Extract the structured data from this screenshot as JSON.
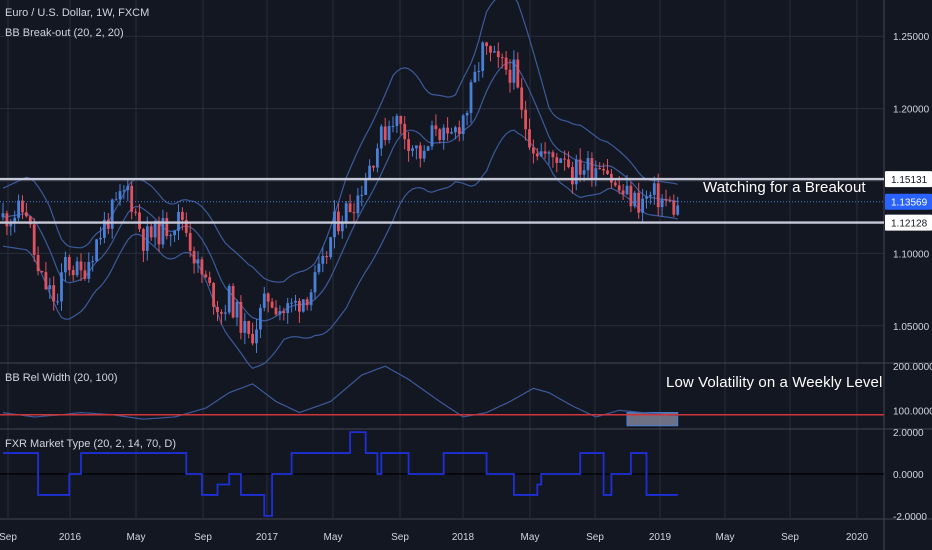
{
  "symbol_title": "Euro / U.S. Dollar, 1W, FXCM",
  "indicator_bb": "BB Break-out (20, 2, 20)",
  "indicator_width": "BB Rel Width (20, 100)",
  "indicator_market": "FXR Market Type (20, 2, 14, 70, D)",
  "annotations": {
    "breakout": "Watching for a Breakout",
    "volatility": "Low Volatility on a Weekly Level"
  },
  "colors": {
    "background": "#131722",
    "grid": "#2a2e39",
    "up_candle": "#4a7fd6",
    "down_candle": "#e0525e",
    "band": "#3c5a9a",
    "level_line": "#c7c9d9",
    "width_line": "#d13438",
    "market_line": "#1e2fd8"
  },
  "chart_data": [
    {
      "type": "candlestick",
      "title": "Euro / U.S. Dollar, 1W, FXCM",
      "x_ticks": [
        "Sep",
        "2016",
        "May",
        "Sep",
        "2017",
        "May",
        "Sep",
        "2018",
        "May",
        "Sep",
        "2019",
        "May",
        "Sep",
        "2020"
      ],
      "y_ticks": [
        "1.25000",
        "1.20000",
        "1.15000",
        "1.10000",
        "1.05000"
      ],
      "ylim": [
        1.025,
        1.275
      ],
      "horizontal_levels": [
        1.15131,
        1.12128
      ],
      "last_price": 1.13569,
      "price_labels": [
        "1.15131",
        "1.13569",
        "1.12128"
      ],
      "close_anchors": [
        [
          0,
          1.125
        ],
        [
          6,
          1.13
        ],
        [
          9,
          1.085
        ],
        [
          14,
          1.065
        ],
        [
          16,
          1.095
        ],
        [
          20,
          1.085
        ],
        [
          26,
          1.12
        ],
        [
          32,
          1.145
        ],
        [
          36,
          1.11
        ],
        [
          40,
          1.115
        ],
        [
          46,
          1.125
        ],
        [
          50,
          1.09
        ],
        [
          56,
          1.06
        ],
        [
          58,
          1.07
        ],
        [
          63,
          1.04
        ],
        [
          68,
          1.07
        ],
        [
          72,
          1.06
        ],
        [
          75,
          1.065
        ],
        [
          79,
          1.075
        ],
        [
          82,
          1.09
        ],
        [
          85,
          1.12
        ],
        [
          91,
          1.14
        ],
        [
          96,
          1.175
        ],
        [
          100,
          1.195
        ],
        [
          105,
          1.175
        ],
        [
          108,
          1.165
        ],
        [
          111,
          1.19
        ],
        [
          114,
          1.175
        ],
        [
          119,
          1.2
        ],
        [
          123,
          1.24
        ],
        [
          127,
          1.23
        ],
        [
          131,
          1.225
        ],
        [
          133,
          1.195
        ],
        [
          136,
          1.175
        ],
        [
          140,
          1.165
        ],
        [
          144,
          1.17
        ],
        [
          146,
          1.155
        ],
        [
          148,
          1.16
        ],
        [
          151,
          1.16
        ],
        [
          154,
          1.165
        ],
        [
          157,
          1.145
        ],
        [
          160,
          1.14
        ],
        [
          163,
          1.135
        ],
        [
          167,
          1.14
        ],
        [
          170,
          1.135
        ],
        [
          173,
          1.13
        ]
      ],
      "band_half_width_anchors": [
        [
          0,
          0.02
        ],
        [
          12,
          0.03
        ],
        [
          22,
          0.02
        ],
        [
          30,
          0.018
        ],
        [
          38,
          0.02
        ],
        [
          48,
          0.018
        ],
        [
          56,
          0.03
        ],
        [
          64,
          0.035
        ],
        [
          72,
          0.02
        ],
        [
          80,
          0.025
        ],
        [
          88,
          0.045
        ],
        [
          100,
          0.05
        ],
        [
          108,
          0.035
        ],
        [
          116,
          0.03
        ],
        [
          124,
          0.055
        ],
        [
          132,
          0.045
        ],
        [
          140,
          0.02
        ],
        [
          148,
          0.025
        ],
        [
          156,
          0.015
        ],
        [
          164,
          0.012
        ],
        [
          173,
          0.012
        ]
      ]
    },
    {
      "type": "line",
      "title": "BB Rel Width (20, 100)",
      "y_ticks": [
        "200.0000",
        "100.0000"
      ],
      "ylim": [
        60,
        205
      ],
      "reference_level": 90,
      "values_anchors": [
        [
          0,
          95
        ],
        [
          8,
          85
        ],
        [
          15,
          90
        ],
        [
          20,
          95
        ],
        [
          28,
          90
        ],
        [
          36,
          80
        ],
        [
          44,
          85
        ],
        [
          52,
          105
        ],
        [
          58,
          140
        ],
        [
          64,
          160
        ],
        [
          70,
          120
        ],
        [
          76,
          95
        ],
        [
          84,
          120
        ],
        [
          92,
          180
        ],
        [
          98,
          200
        ],
        [
          104,
          170
        ],
        [
          112,
          120
        ],
        [
          118,
          85
        ],
        [
          124,
          95
        ],
        [
          130,
          120
        ],
        [
          136,
          150
        ],
        [
          140,
          140
        ],
        [
          146,
          110
        ],
        [
          152,
          85
        ],
        [
          158,
          100
        ],
        [
          164,
          95
        ],
        [
          170,
          90
        ],
        [
          173,
          88
        ]
      ],
      "highlight_box": [
        160,
        173,
        65,
        95
      ]
    },
    {
      "type": "line",
      "title": "FXR Market Type (20, 2, 14, 70, D)",
      "y_ticks": [
        "2.0000",
        "0.0000",
        "-2.0000"
      ],
      "ylim": [
        -2.1,
        2.1
      ],
      "steps": [
        [
          0,
          1
        ],
        [
          9,
          -1
        ],
        [
          17,
          0
        ],
        [
          20,
          1
        ],
        [
          47,
          0
        ],
        [
          51,
          -1
        ],
        [
          55,
          -0.5
        ],
        [
          58,
          0
        ],
        [
          61,
          -1
        ],
        [
          67,
          -2
        ],
        [
          69,
          0
        ],
        [
          74,
          1
        ],
        [
          89,
          2
        ],
        [
          93,
          1
        ],
        [
          96,
          0
        ],
        [
          97,
          1
        ],
        [
          104,
          0
        ],
        [
          113,
          1
        ],
        [
          124,
          0
        ],
        [
          131,
          -1
        ],
        [
          137,
          -0.5
        ],
        [
          138,
          0
        ],
        [
          148,
          1
        ],
        [
          154,
          -1
        ],
        [
          156,
          0
        ],
        [
          161,
          1
        ],
        [
          165,
          -1
        ],
        [
          173,
          -1
        ]
      ]
    }
  ]
}
